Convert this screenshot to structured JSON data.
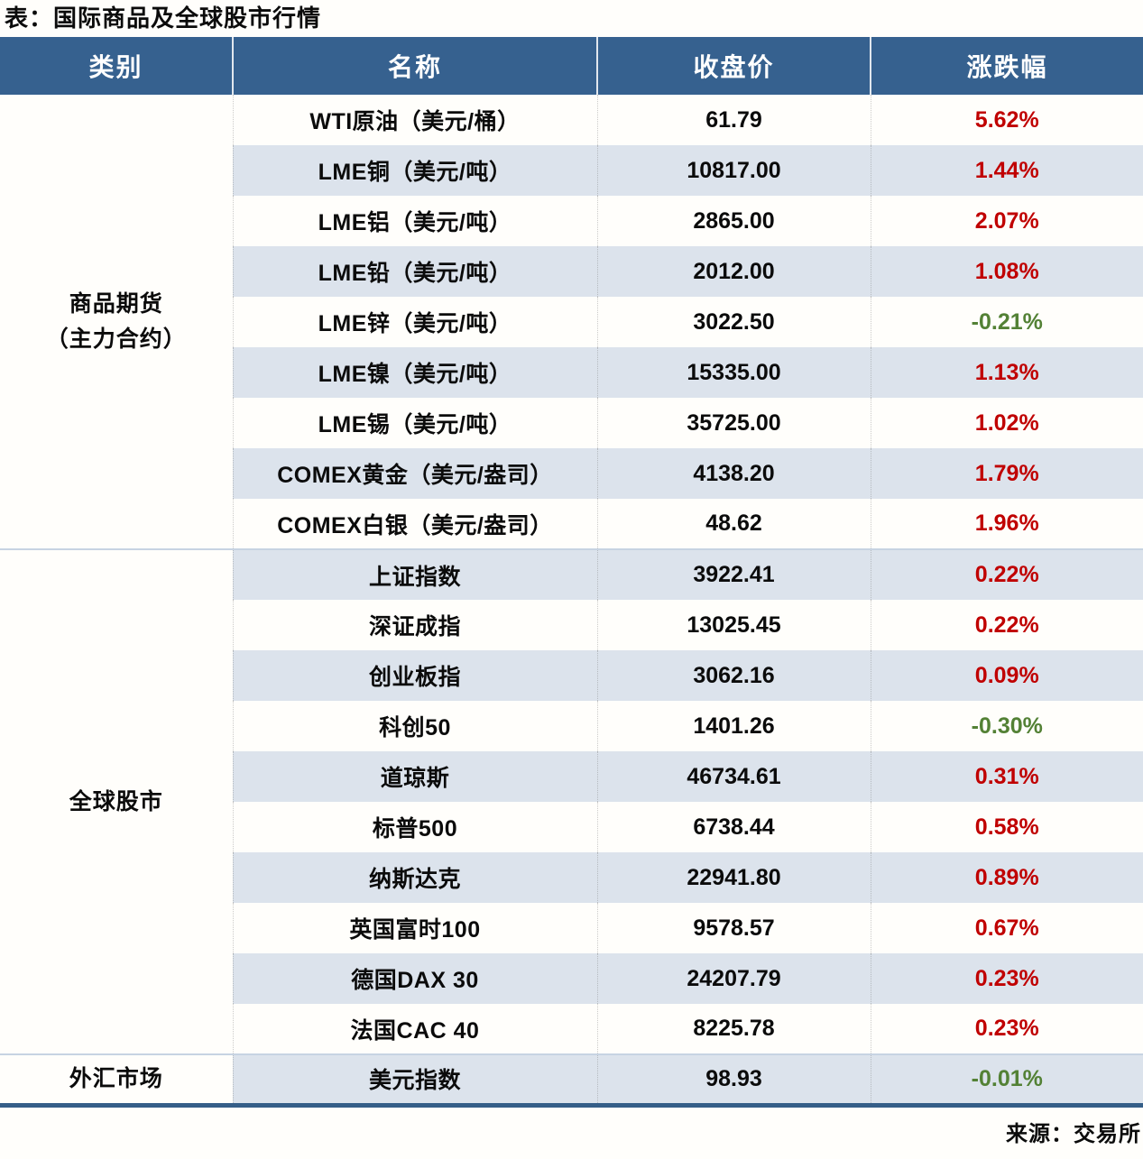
{
  "colors": {
    "header_bg": "#36618F",
    "row_stripe": "#DCE3EC",
    "positive_change": "#C00000",
    "negative_change": "#538135",
    "bottom_border": "#355E88"
  },
  "chart_data": {
    "type": "table",
    "title": "表：国际商品及全球股市行情",
    "source": "来源：交易所",
    "columns": [
      "类别",
      "名称",
      "收盘价",
      "涨跌幅"
    ],
    "groups": [
      {
        "category": "商品期货\n（主力合约）",
        "rows": [
          {
            "name": "WTI原油（美元/桶）",
            "close": "61.79",
            "change": "5.62%",
            "dir": "up"
          },
          {
            "name": "LME铜（美元/吨）",
            "close": "10817.00",
            "change": "1.44%",
            "dir": "up"
          },
          {
            "name": "LME铝（美元/吨）",
            "close": "2865.00",
            "change": "2.07%",
            "dir": "up"
          },
          {
            "name": "LME铅（美元/吨）",
            "close": "2012.00",
            "change": "1.08%",
            "dir": "up"
          },
          {
            "name": "LME锌（美元/吨）",
            "close": "3022.50",
            "change": "-0.21%",
            "dir": "down"
          },
          {
            "name": "LME镍（美元/吨）",
            "close": "15335.00",
            "change": "1.13%",
            "dir": "up"
          },
          {
            "name": "LME锡（美元/吨）",
            "close": "35725.00",
            "change": "1.02%",
            "dir": "up"
          },
          {
            "name": "COMEX黄金（美元/盎司）",
            "close": "4138.20",
            "change": "1.79%",
            "dir": "up"
          },
          {
            "name": "COMEX白银（美元/盎司）",
            "close": "48.62",
            "change": "1.96%",
            "dir": "up"
          }
        ]
      },
      {
        "category": "全球股市",
        "rows": [
          {
            "name": "上证指数",
            "close": "3922.41",
            "change": "0.22%",
            "dir": "up"
          },
          {
            "name": "深证成指",
            "close": "13025.45",
            "change": "0.22%",
            "dir": "up"
          },
          {
            "name": "创业板指",
            "close": "3062.16",
            "change": "0.09%",
            "dir": "up"
          },
          {
            "name": "科创50",
            "close": "1401.26",
            "change": "-0.30%",
            "dir": "down"
          },
          {
            "name": "道琼斯",
            "close": "46734.61",
            "change": "0.31%",
            "dir": "up"
          },
          {
            "name": "标普500",
            "close": "6738.44",
            "change": "0.58%",
            "dir": "up"
          },
          {
            "name": "纳斯达克",
            "close": "22941.80",
            "change": "0.89%",
            "dir": "up"
          },
          {
            "name": "英国富时100",
            "close": "9578.57",
            "change": "0.67%",
            "dir": "up"
          },
          {
            "name": "德国DAX 30",
            "close": "24207.79",
            "change": "0.23%",
            "dir": "up"
          },
          {
            "name": "法国CAC 40",
            "close": "8225.78",
            "change": "0.23%",
            "dir": "up"
          }
        ]
      },
      {
        "category": "外汇市场",
        "rows": [
          {
            "name": "美元指数",
            "close": "98.93",
            "change": "-0.01%",
            "dir": "down"
          }
        ]
      }
    ]
  }
}
